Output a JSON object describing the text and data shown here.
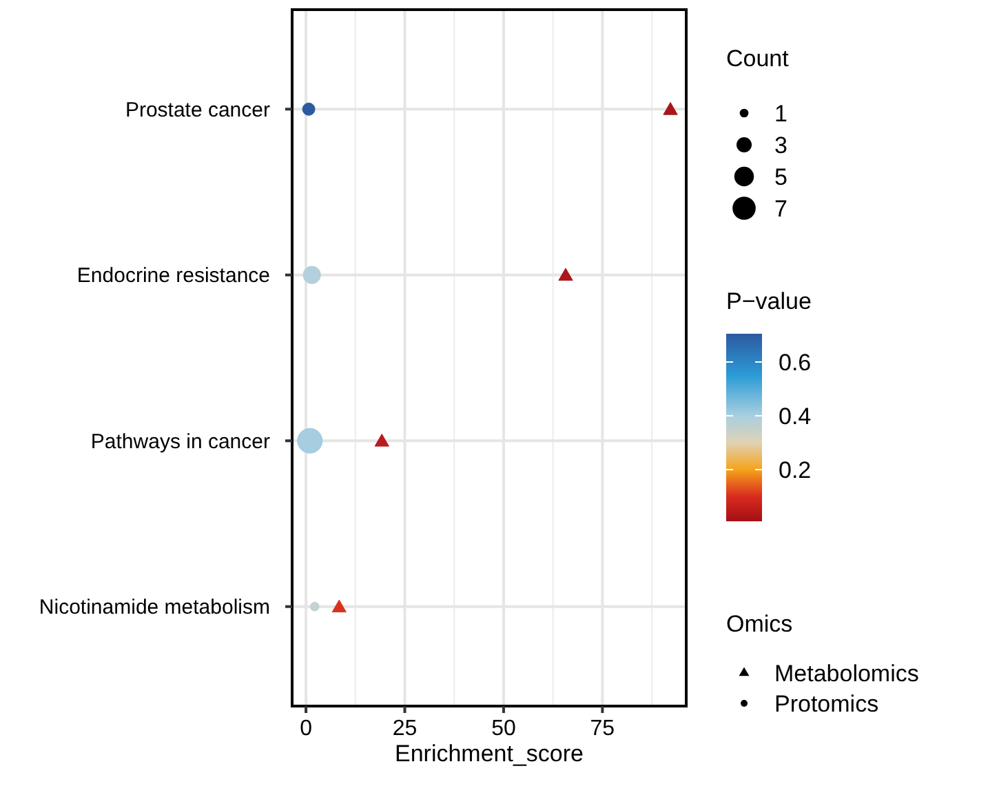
{
  "chart_data": {
    "type": "bubble",
    "orientation": "horizontal",
    "xlabel": "Enrichment_score",
    "categories": [
      "Prostate cancer",
      "Endocrine resistance",
      "Pathways in cancer",
      "Nicotinamide metabolism"
    ],
    "series": [
      {
        "name": "Metabolomics",
        "marker": "triangle",
        "values": [
          92.2,
          65.7,
          19.2,
          8.4
        ],
        "sizes": [
          1.4,
          1.4,
          1.4,
          1.4
        ],
        "cvalues": [
          0.01,
          0.02,
          0.04,
          0.11
        ],
        "colors": [
          "#a8151c",
          "#ad161d",
          "#b81c1e",
          "#d8321f"
        ]
      },
      {
        "name": "Protomics",
        "marker": "circle",
        "values": [
          0.7,
          1.5,
          1,
          2.2
        ],
        "sizes": [
          2,
          4,
          8,
          1
        ],
        "cvalues": [
          0.7,
          0.38,
          0.42,
          0.36
        ],
        "colors": [
          "#2c5aa0",
          "#b3d0dc",
          "#a6cde0",
          "#c4d2d4"
        ]
      }
    ],
    "xlim": [
      -3.5,
      96.2
    ],
    "xticks": [
      0,
      25,
      50,
      75
    ],
    "size_legend": [
      1,
      3,
      5,
      7
    ],
    "clabel": "P−value",
    "clim": [
      0.008,
      0.705
    ],
    "cticks": [
      0.2,
      0.4,
      0.6
    ],
    "legend_title": "Omics",
    "annotations": [
      "Count"
    ],
    "grid": true,
    "legend": "right"
  }
}
